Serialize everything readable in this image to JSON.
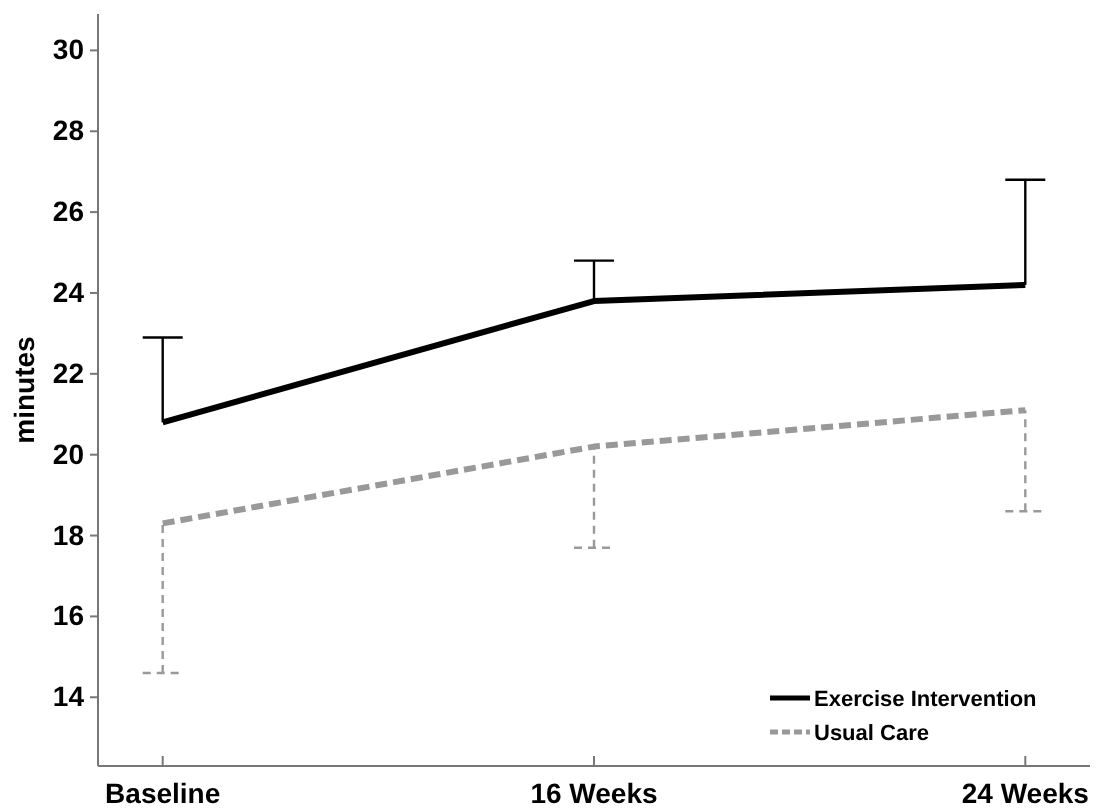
{
  "chart_data": {
    "type": "line",
    "ylabel": "minutes",
    "categories": [
      "Baseline",
      "16 Weeks",
      "24 Weeks"
    ],
    "ylim": [
      12.3,
      30.9
    ],
    "yticks": [
      14,
      16,
      18,
      20,
      22,
      24,
      26,
      28,
      30
    ],
    "grid": false,
    "legend": "bottom right",
    "marker": "none",
    "series": [
      {
        "name": "Exercise Intervention",
        "color": "#000000",
        "line_style": "solid",
        "values": [
          20.8,
          23.8,
          24.2
        ],
        "errors": [
          [
            20.8,
            22.9
          ],
          [
            23.8,
            24.8
          ],
          [
            24.2,
            26.8
          ]
        ]
      },
      {
        "name": "Usual Care",
        "color": "#999999",
        "line_style": "dashed",
        "values": [
          18.3,
          20.2,
          21.1
        ],
        "errors": [
          [
            14.6,
            18.3
          ],
          [
            17.7,
            20.2
          ],
          [
            18.6,
            21.1
          ]
        ]
      }
    ]
  }
}
